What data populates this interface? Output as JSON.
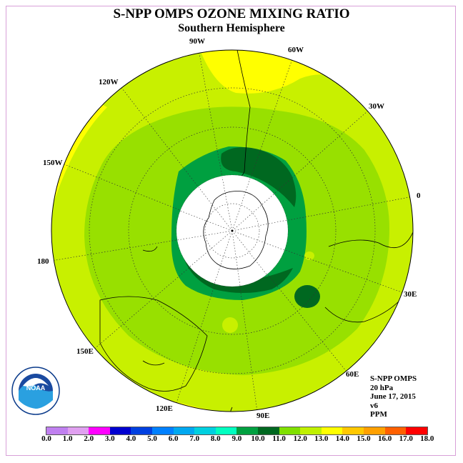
{
  "title": "S-NPP OMPS OZONE MIXING RATIO",
  "subtitle": "Southern Hemisphere",
  "longitude_labels": [
    "90W",
    "60W",
    "30W",
    "0",
    "30E",
    "60E",
    "90E",
    "120E",
    "150E",
    "180",
    "150W",
    "120W"
  ],
  "info": {
    "instrument": "S-NPP OMPS",
    "level": "20 hPa",
    "date": "June 17, 2015",
    "version": "v6",
    "units": "PPM"
  },
  "colorbar": {
    "labels": [
      "0.0",
      "1.0",
      "2.0",
      "3.0",
      "4.0",
      "5.0",
      "6.0",
      "7.0",
      "8.0",
      "9.0",
      "10.0",
      "11.0",
      "12.0",
      "13.0",
      "14.0",
      "15.0",
      "16.0",
      "17.0",
      "18.0"
    ],
    "colors": [
      "#c080f0",
      "#e0a0f0",
      "#ff00ff",
      "#0000d0",
      "#0040e0",
      "#0080ff",
      "#00a8f0",
      "#00d0e0",
      "#00ffc0",
      "#00a040",
      "#006820",
      "#80e000",
      "#c0f000",
      "#ffff00",
      "#ffc800",
      "#ffa000",
      "#ff6000",
      "#ff0000",
      "#a06040"
    ]
  },
  "logo": {
    "text": "NOAA",
    "name": "noaa-logo"
  },
  "chart_data": {
    "type": "polar-map",
    "title": "S-NPP OMPS OZONE MIXING RATIO",
    "subtitle": "Southern Hemisphere",
    "units": "PPM",
    "level": "20 hPa",
    "date": "June 17, 2015",
    "scale_min": 0.0,
    "scale_max": 18.0,
    "no_data_region": "polar night (white cap)",
    "field_ranges_ppm": [
      {
        "region": "outer rim",
        "range": [
          12.0,
          13.0
        ]
      },
      {
        "region": "mid-latitudes",
        "range": [
          11.0,
          12.0
        ]
      },
      {
        "region": "inner ring",
        "range": [
          10.0,
          11.0
        ]
      },
      {
        "region": "vortex edge",
        "range": [
          8.0,
          10.0
        ]
      }
    ]
  }
}
